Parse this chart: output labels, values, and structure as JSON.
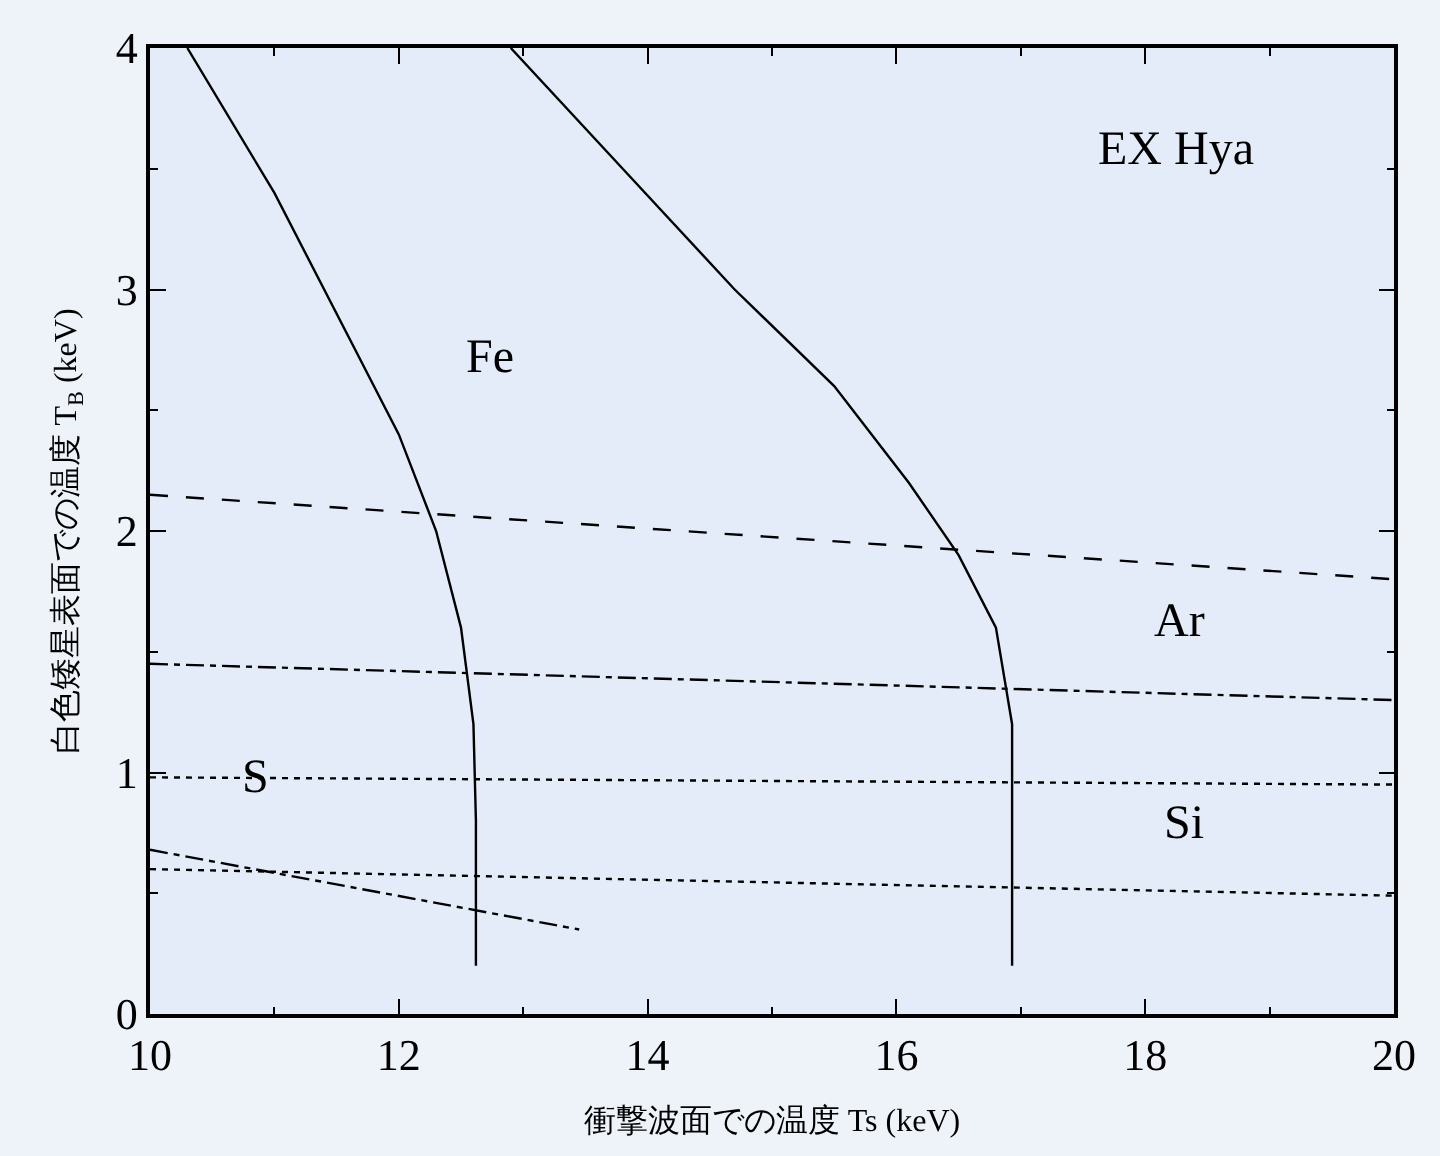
{
  "chart_data": {
    "type": "line",
    "xlabel": "衝撃波面での温度 Ts (keV)",
    "ylabel": "白色矮星表面での温度 T$_{B}$ (keV)",
    "xlim": [
      10,
      20
    ],
    "ylim": [
      0,
      4
    ],
    "xticks": [
      10,
      12,
      14,
      16,
      18,
      20
    ],
    "yticks": [
      0,
      1,
      2,
      3,
      4
    ],
    "grid": false,
    "marker": "none",
    "series": [
      {
        "color": "#000000",
        "line_style": "solid",
        "x": [
          10.3,
          11.0,
          11.6,
          12.0,
          12.3,
          12.5,
          12.6,
          12.62,
          12.62
        ],
        "values": [
          4,
          3.4,
          2.8,
          2.4,
          2.0,
          1.6,
          1.2,
          0.8,
          0.2
        ]
      },
      {
        "color": "#000000",
        "line_style": "solid",
        "x": [
          12.9,
          13.8,
          14.7,
          15.5,
          16.1,
          16.5,
          16.8,
          16.93,
          16.93
        ],
        "values": [
          4,
          3.5,
          3.0,
          2.6,
          2.2,
          1.9,
          1.6,
          1.2,
          0.2
        ]
      },
      {
        "color": "#000000",
        "line_style": "dashed",
        "x": [
          10,
          20
        ],
        "values": [
          2.15,
          1.8
        ]
      },
      {
        "color": "#000000",
        "line_style": "dashdot",
        "x": [
          10,
          20
        ],
        "values": [
          1.45,
          1.3
        ]
      },
      {
        "color": "#000000",
        "line_style": "dotted",
        "x": [
          10,
          20
        ],
        "values": [
          0.98,
          0.95
        ]
      },
      {
        "color": "#000000",
        "line_style": "dotted",
        "x": [
          10,
          20
        ],
        "values": [
          0.6,
          0.49
        ]
      },
      {
        "color": "#000000",
        "line_style": "dashdot",
        "x": [
          10,
          13.45
        ],
        "values": [
          0.68,
          0.35
        ]
      }
    ],
    "annotations": [
      "EX Hya",
      "Fe",
      "Ar",
      {
        "text": "S",
        "x": 10.85,
        "y": 0.98
      },
      "Si"
    ]
  }
}
